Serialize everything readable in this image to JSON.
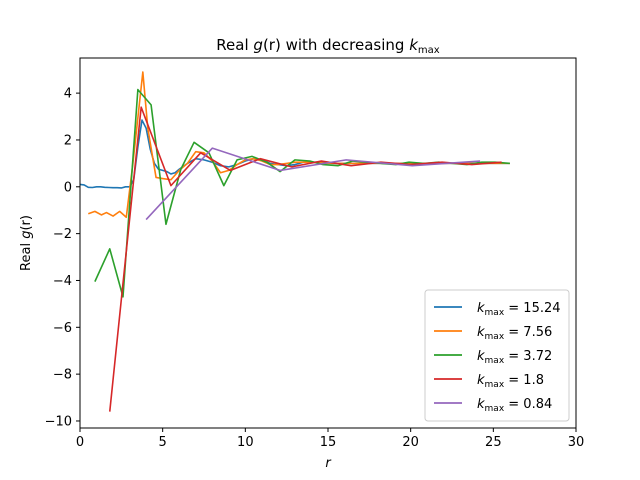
{
  "chart_data": {
    "type": "line",
    "title": {
      "prefix": "Real ",
      "func": "g",
      "arg": "(r)",
      "middle": " with decreasing ",
      "k": "k",
      "sub": "max"
    },
    "xlabel": "r",
    "ylabel": {
      "prefix": "Real ",
      "func": "g",
      "arg": "(r)"
    },
    "xlim": [
      0,
      30
    ],
    "ylim": [
      -10.3,
      5.5
    ],
    "xticks": [
      0,
      5,
      10,
      15,
      20,
      25,
      30
    ],
    "yticks": [
      -10,
      -8,
      -6,
      -4,
      -2,
      0,
      2,
      4
    ],
    "grid": false,
    "legend_position": "lower-right",
    "series": [
      {
        "name": "15.24",
        "label_k": "k",
        "label_sub": "max",
        "label_eq": " = 15.24",
        "color": "#1f77b4",
        "points": [
          [
            0.0,
            0.1
          ],
          [
            0.25,
            0.08
          ],
          [
            0.5,
            -0.02
          ],
          [
            0.75,
            -0.03
          ],
          [
            1.0,
            0.0
          ],
          [
            1.25,
            0.0
          ],
          [
            1.5,
            -0.02
          ],
          [
            1.75,
            -0.03
          ],
          [
            2.0,
            -0.04
          ],
          [
            2.25,
            -0.04
          ],
          [
            2.5,
            -0.05
          ],
          [
            2.75,
            0.0
          ],
          [
            3.0,
            0.0
          ],
          [
            3.25,
            0.3
          ],
          [
            3.5,
            1.7
          ],
          [
            3.75,
            2.85
          ],
          [
            4.0,
            2.5
          ],
          [
            4.25,
            1.6
          ],
          [
            4.5,
            1.0
          ],
          [
            4.75,
            0.75
          ],
          [
            5.0,
            0.7
          ],
          [
            5.25,
            0.65
          ],
          [
            5.5,
            0.55
          ],
          [
            5.75,
            0.6
          ],
          [
            6.0,
            0.75
          ],
          [
            6.5,
            1.0
          ],
          [
            7.0,
            1.2
          ],
          [
            7.5,
            1.15
          ],
          [
            8.0,
            1.05
          ],
          [
            8.5,
            0.9
          ],
          [
            9.0,
            0.85
          ],
          [
            9.5,
            0.95
          ],
          [
            10.0,
            1.1
          ],
          [
            10.5,
            1.2
          ],
          [
            11.0,
            1.15
          ],
          [
            11.5,
            1.0
          ],
          [
            12.0,
            0.95
          ],
          [
            12.5,
            0.9
          ],
          [
            13.0,
            0.95
          ],
          [
            13.5,
            1.05
          ],
          [
            14.0,
            1.05
          ],
          [
            14.5,
            1.05
          ],
          [
            15.0,
            1.0
          ],
          [
            15.5,
            1.0
          ],
          [
            16.0,
            1.0
          ],
          [
            17.0,
            1.0
          ],
          [
            18.0,
            1.0
          ],
          [
            19.0,
            1.0
          ],
          [
            20.0,
            1.0
          ],
          [
            21.0,
            1.0
          ],
          [
            22.0,
            1.0
          ],
          [
            23.0,
            1.0
          ],
          [
            24.0,
            1.0
          ],
          [
            25.0,
            1.0
          ],
          [
            26.0,
            1.0
          ]
        ]
      },
      {
        "name": "7.56",
        "label_k": "k",
        "label_sub": "max",
        "label_eq": " = 7.56",
        "color": "#ff7f0e",
        "points": [
          [
            0.5,
            -1.15
          ],
          [
            0.9,
            -1.05
          ],
          [
            1.3,
            -1.2
          ],
          [
            1.6,
            -1.1
          ],
          [
            2.0,
            -1.25
          ],
          [
            2.4,
            -1.05
          ],
          [
            2.8,
            -1.3
          ],
          [
            3.2,
            1.0
          ],
          [
            3.8,
            4.9
          ],
          [
            4.1,
            2.5
          ],
          [
            4.6,
            0.4
          ],
          [
            5.0,
            0.35
          ],
          [
            5.5,
            0.3
          ],
          [
            6.0,
            0.7
          ],
          [
            6.5,
            1.0
          ],
          [
            7.0,
            1.5
          ],
          [
            7.5,
            1.45
          ],
          [
            8.0,
            1.1
          ],
          [
            8.5,
            0.6
          ],
          [
            9.0,
            0.7
          ],
          [
            9.5,
            0.95
          ],
          [
            10.0,
            1.15
          ],
          [
            10.5,
            1.2
          ],
          [
            11.0,
            1.1
          ],
          [
            11.5,
            0.95
          ],
          [
            12.0,
            0.95
          ],
          [
            12.5,
            1.0
          ],
          [
            13.0,
            1.05
          ],
          [
            14.0,
            1.05
          ],
          [
            15.0,
            1.0
          ],
          [
            16.0,
            1.0
          ],
          [
            17.0,
            1.0
          ],
          [
            18.0,
            1.0
          ],
          [
            19.0,
            1.0
          ],
          [
            20.0,
            1.0
          ],
          [
            21.0,
            1.0
          ],
          [
            22.0,
            1.0
          ],
          [
            23.0,
            1.0
          ],
          [
            24.0,
            1.0
          ],
          [
            25.0,
            1.0
          ],
          [
            26.0,
            1.0
          ]
        ]
      },
      {
        "name": "3.72",
        "label_k": "k",
        "label_sub": "max",
        "label_eq": " = 3.72",
        "color": "#2ca02c",
        "points": [
          [
            0.9,
            -4.05
          ],
          [
            1.8,
            -2.65
          ],
          [
            2.6,
            -4.7
          ],
          [
            3.5,
            4.15
          ],
          [
            4.3,
            3.5
          ],
          [
            5.2,
            -1.6
          ],
          [
            6.1,
            0.75
          ],
          [
            6.9,
            1.9
          ],
          [
            7.8,
            1.45
          ],
          [
            8.7,
            0.05
          ],
          [
            9.5,
            1.15
          ],
          [
            10.4,
            1.3
          ],
          [
            11.3,
            1.05
          ],
          [
            12.1,
            0.65
          ],
          [
            13.0,
            1.15
          ],
          [
            13.9,
            1.1
          ],
          [
            14.7,
            0.95
          ],
          [
            15.6,
            0.9
          ],
          [
            16.5,
            1.1
          ],
          [
            17.3,
            1.05
          ],
          [
            18.2,
            1.0
          ],
          [
            19.1,
            0.95
          ],
          [
            19.9,
            1.05
          ],
          [
            20.8,
            1.0
          ],
          [
            21.7,
            1.05
          ],
          [
            22.5,
            1.0
          ],
          [
            23.4,
            0.95
          ],
          [
            24.3,
            1.05
          ],
          [
            25.1,
            1.05
          ],
          [
            26.0,
            1.0
          ]
        ]
      },
      {
        "name": "1.8",
        "label_k": "k",
        "label_sub": "max",
        "label_eq": " = 1.8",
        "color": "#d62728",
        "points": [
          [
            1.8,
            -9.6
          ],
          [
            3.7,
            3.4
          ],
          [
            5.5,
            0.05
          ],
          [
            7.3,
            1.45
          ],
          [
            9.1,
            0.7
          ],
          [
            10.9,
            1.2
          ],
          [
            12.8,
            0.85
          ],
          [
            14.6,
            1.1
          ],
          [
            16.4,
            0.9
          ],
          [
            18.2,
            1.05
          ],
          [
            20.0,
            0.95
          ],
          [
            21.9,
            1.05
          ],
          [
            23.7,
            0.95
          ],
          [
            25.5,
            1.05
          ]
        ]
      },
      {
        "name": "0.84",
        "label_k": "k",
        "label_sub": "max",
        "label_eq": " = 0.84",
        "color": "#9467bd",
        "points": [
          [
            4.0,
            -1.4
          ],
          [
            8.0,
            1.65
          ],
          [
            12.1,
            0.7
          ],
          [
            16.1,
            1.15
          ],
          [
            20.1,
            0.9
          ],
          [
            24.2,
            1.1
          ]
        ]
      }
    ]
  }
}
